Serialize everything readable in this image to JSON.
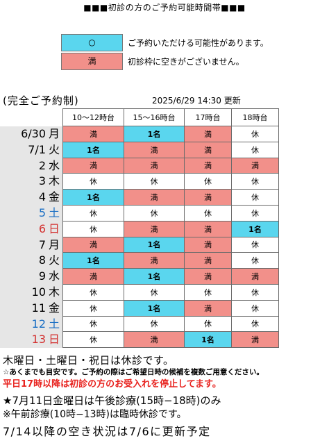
{
  "title": "■■■初診の方のご予約可能時間帯■■■",
  "legend": [
    {
      "symbol": "○",
      "text": "ご予約いただける可能性があります。",
      "color": "#5ad6ee"
    },
    {
      "symbol": "満",
      "text": "初診枠に空きがございません。",
      "color": "#f2908a"
    }
  ],
  "subhead": "(完全ご予約制)",
  "updated": "2025/6/29 14:30 更新",
  "columns": [
    "10〜12時台",
    "15〜16時台",
    "17時台",
    "18時台"
  ],
  "rows": [
    {
      "date": "6/30",
      "weekday": "月",
      "tone": "normal",
      "cells": [
        "満",
        "1名",
        "満",
        "休"
      ]
    },
    {
      "date": "7/1",
      "weekday": "火",
      "tone": "normal",
      "cells": [
        "1名",
        "満",
        "満",
        "休"
      ]
    },
    {
      "date": "2",
      "weekday": "水",
      "tone": "normal",
      "cells": [
        "満",
        "満",
        "満",
        "満"
      ]
    },
    {
      "date": "3",
      "weekday": "木",
      "tone": "normal",
      "cells": [
        "休",
        "休",
        "休",
        "休"
      ]
    },
    {
      "date": "4",
      "weekday": "金",
      "tone": "normal",
      "cells": [
        "1名",
        "満",
        "満",
        "休"
      ]
    },
    {
      "date": "5",
      "weekday": "土",
      "tone": "blue",
      "cells": [
        "休",
        "休",
        "休",
        "休"
      ]
    },
    {
      "date": "6",
      "weekday": "日",
      "tone": "red",
      "cells": [
        "休",
        "満",
        "満",
        "1名"
      ]
    },
    {
      "date": "7",
      "weekday": "月",
      "tone": "normal",
      "cells": [
        "満",
        "1名",
        "満",
        "休"
      ]
    },
    {
      "date": "8",
      "weekday": "火",
      "tone": "normal",
      "cells": [
        "1名",
        "満",
        "満",
        "休"
      ]
    },
    {
      "date": "9",
      "weekday": "水",
      "tone": "normal",
      "cells": [
        "満",
        "1名",
        "満",
        "満"
      ]
    },
    {
      "date": "10",
      "weekday": "木",
      "tone": "normal",
      "cells": [
        "休",
        "休",
        "休",
        "休"
      ]
    },
    {
      "date": "11",
      "weekday": "金",
      "tone": "normal",
      "cells": [
        "休",
        "1名",
        "満",
        "休"
      ]
    },
    {
      "date": "12",
      "weekday": "土",
      "tone": "blue",
      "cells": [
        "休",
        "休",
        "休",
        "休"
      ]
    },
    {
      "date": "13",
      "weekday": "日",
      "tone": "red",
      "cells": [
        "休",
        "満",
        "1名",
        "満"
      ]
    }
  ],
  "notes": {
    "closed_days": "木曜日・土曜日・祝日は休診です。",
    "estimate": "☆あくまでも目安です。ご予約の際はご希望日時の候補を複数ご用意ください。",
    "weekday_stop": "平日17時以降は初診の方のお受入れを停止してます。",
    "friday": "★7月11日金曜日は午後診療(15時−18時)のみ",
    "morning": "※午前診療(10時−13時)は臨時休診です。",
    "next_update": "7/14以降の空き状況は7/6に更新予定"
  },
  "colors": {
    "full": "#f2908a",
    "available": "#5ad6ee",
    "closed": "#ffffff",
    "saturday": "#1a6fc4",
    "sunday": "#d3302f",
    "alert": "#e8231f"
  }
}
